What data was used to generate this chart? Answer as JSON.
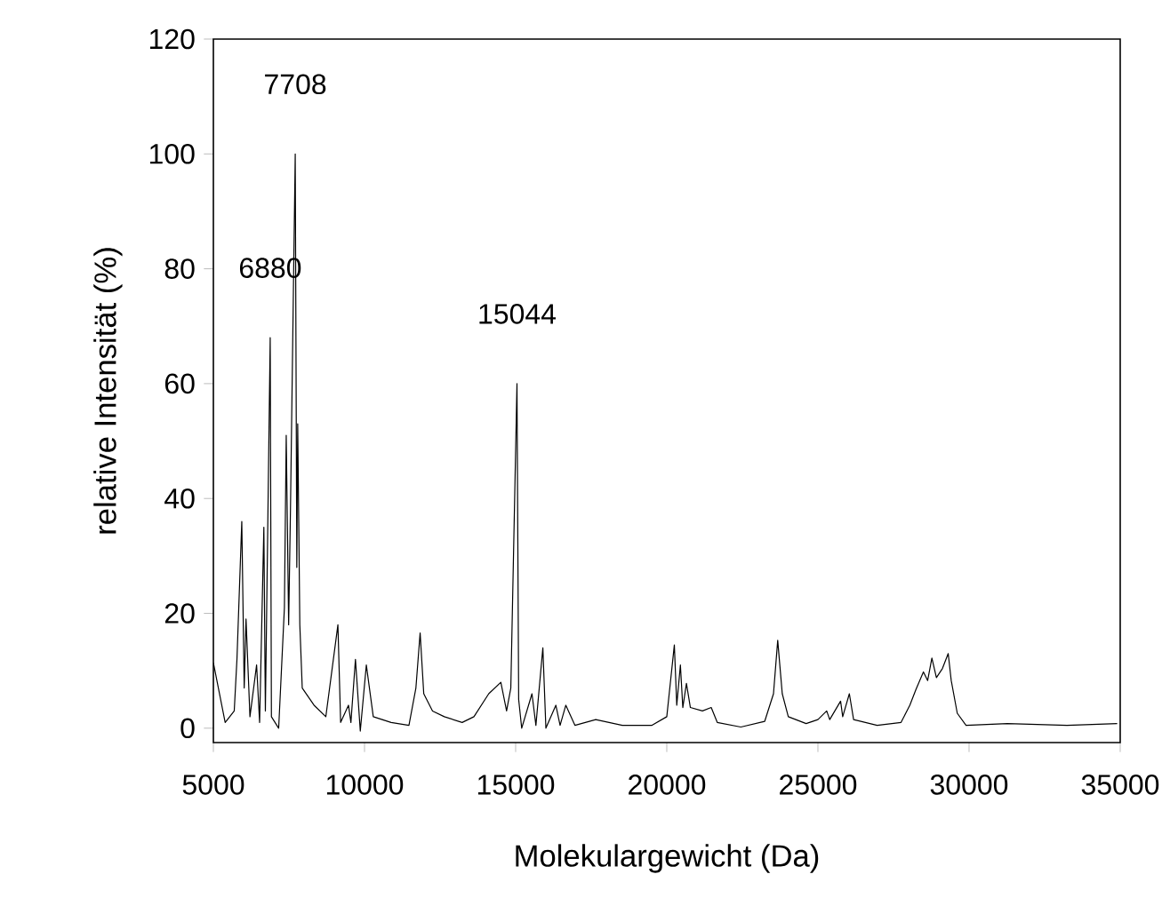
{
  "chart_data": {
    "type": "line",
    "xlabel": "Molekulargewicht (Da)",
    "ylabel": "relative Intensität (%)",
    "xlim": [
      5000,
      35000
    ],
    "xticks": [
      5000,
      10000,
      15000,
      20000,
      25000,
      30000,
      35000
    ],
    "ylim": [
      -2.5,
      120
    ],
    "yticks": [
      0,
      20,
      40,
      60,
      80,
      100,
      120
    ],
    "grid": false,
    "marker": "none",
    "line_style": "solid",
    "annotations": [
      {
        "text": "6880",
        "x": 6880,
        "y": 68
      },
      {
        "text": "7708",
        "x": 7708,
        "y": 100
      },
      {
        "text": "15044",
        "x": 15044,
        "y": 60
      }
    ],
    "series": [
      {
        "color": "#000000",
        "x": [
          5000,
          5390,
          5690,
          5780,
          5940,
          6020,
          6080,
          6210,
          6430,
          6530,
          6670,
          6720,
          6880,
          6920,
          7160,
          7350,
          7410,
          7490,
          7550,
          7708,
          7760,
          7790,
          7860,
          7940,
          8330,
          8720,
          9120,
          9210,
          9470,
          9550,
          9700,
          9860,
          10060,
          10290,
          10880,
          11470,
          11700,
          11840,
          11960,
          12250,
          12640,
          13230,
          13620,
          14110,
          14510,
          14700,
          14840,
          15044,
          15100,
          15200,
          15540,
          15670,
          15900,
          16000,
          16330,
          16470,
          16660,
          16960,
          17650,
          18530,
          19510,
          20000,
          20250,
          20330,
          20450,
          20530,
          20650,
          20780,
          21180,
          21470,
          21670,
          22450,
          23240,
          23530,
          23670,
          23820,
          24020,
          24610,
          25000,
          25290,
          25390,
          25750,
          25820,
          26040,
          26180,
          26960,
          27750,
          28040,
          28240,
          28490,
          28630,
          28770,
          28920,
          29120,
          29310,
          29410,
          29610,
          29900,
          31270,
          33240,
          34900
        ],
        "values": [
          11.4,
          1,
          3,
          12,
          36,
          7,
          19,
          2,
          11,
          1,
          35,
          3,
          68,
          2,
          0,
          21,
          51,
          18,
          38,
          100,
          28,
          53,
          18,
          7,
          4,
          2,
          18,
          1,
          4,
          1,
          12,
          -0.5,
          11,
          2,
          1,
          0.5,
          7,
          16.6,
          6,
          3,
          2,
          1,
          2,
          6,
          8,
          3,
          7,
          60,
          5,
          0,
          6,
          0.5,
          14,
          0,
          4,
          0.5,
          4,
          0.5,
          1.5,
          0.5,
          0.5,
          2,
          14.5,
          4,
          11,
          3.6,
          7.8,
          3.6,
          3,
          3.6,
          1,
          0.2,
          1.2,
          6,
          15.3,
          6,
          2,
          0.8,
          1.5,
          3,
          1.5,
          4.7,
          2,
          6,
          1.5,
          0.5,
          1,
          4,
          6.7,
          9.8,
          8.3,
          12.2,
          8.8,
          10.4,
          13,
          8.3,
          2.6,
          0.5,
          0.8,
          0.5,
          0.8
        ]
      }
    ]
  }
}
